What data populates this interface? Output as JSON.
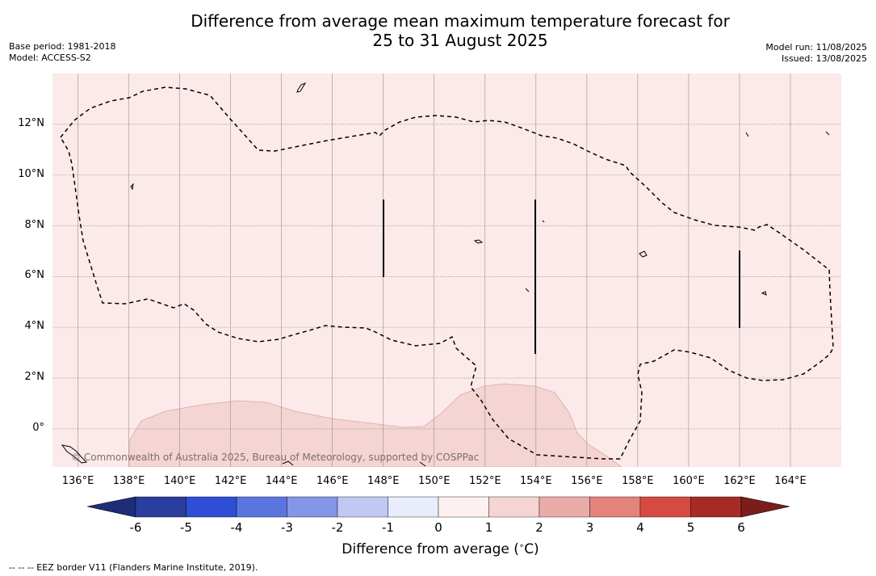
{
  "title_line1": "Difference from average mean maximum temperature forecast for",
  "title_line2": "25 to 31 August 2025",
  "meta_left": {
    "base_period": "Base period: 1981-2018",
    "model": "Model: ACCESS-S2"
  },
  "meta_right": {
    "model_run": "Model run: 11/08/2025",
    "issued": "Issued: 13/08/2025"
  },
  "copyright": "© Commonwealth of Australia 2025, Bureau of Meteorology, supported by COSPPac",
  "map": {
    "lon_range": [
      135,
      166
    ],
    "lat_range": [
      -1.5,
      14
    ],
    "lon_ticks": [
      "136°E",
      "138°E",
      "140°E",
      "142°E",
      "144°E",
      "146°E",
      "148°E",
      "150°E",
      "152°E",
      "154°E",
      "156°E",
      "158°E",
      "160°E",
      "162°E",
      "164°E"
    ],
    "lat_ticks": [
      "12°N",
      "10°N",
      "8°N",
      "6°N",
      "4°N",
      "2°N",
      "0°"
    ],
    "background_anomaly_color": "#fbeae9",
    "warm_region_color": "#f4d5d3",
    "eez_border_color": "#000000"
  },
  "colorbar": {
    "tick_labels": [
      "-6",
      "-5",
      "-4",
      "-3",
      "-2",
      "-1",
      "0",
      "1",
      "2",
      "3",
      "4",
      "5",
      "6"
    ],
    "colors": [
      "#2a3e9e",
      "#2f4ed6",
      "#5b75e0",
      "#8595e8",
      "#c0c8f3",
      "#e9ecfb",
      "#fdf0ef",
      "#f4d5d3",
      "#eaaca9",
      "#e4837c",
      "#d64a42",
      "#a62b26"
    ],
    "under_color": "#1e2d78",
    "over_color": "#7a1d1b",
    "label": "Difference from average ($^\\circ$C)"
  },
  "legend_note": "--  --  -- EEZ border V11 (Flanders Marine Institute, 2019)."
}
